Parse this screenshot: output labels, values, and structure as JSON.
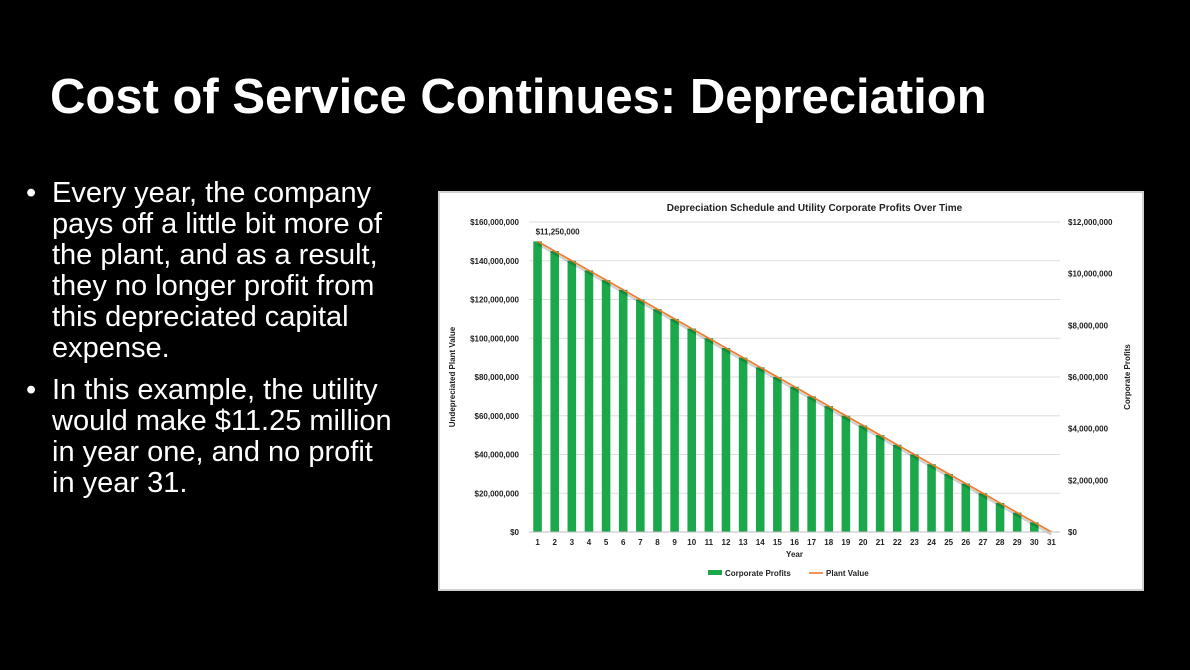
{
  "slide": {
    "title": "Cost of Service Continues: Depreciation",
    "bullets": [
      "Every year, the company pays off a little bit more of the plant, and as a result, they no longer profit from this depreciated capital expense.",
      "In this example, the utility would make $11.25 million in year one, and no profit in year 31."
    ],
    "bullet_symbol": "•"
  },
  "chart_data": {
    "type": "bar",
    "title": "Depreciation Schedule and Utility Corporate Profits Over Time",
    "xlabel": "Year",
    "ylabel": "Undepreciated Plant Value",
    "y2label": "Corporate Profits",
    "categories": [
      "1",
      "2",
      "3",
      "4",
      "5",
      "6",
      "7",
      "8",
      "9",
      "10",
      "11",
      "12",
      "13",
      "14",
      "15",
      "16",
      "17",
      "18",
      "19",
      "20",
      "21",
      "22",
      "23",
      "24",
      "25",
      "26",
      "27",
      "28",
      "29",
      "30",
      "31"
    ],
    "ylim": [
      0,
      160000000
    ],
    "y_ticks": [
      0,
      20000000,
      40000000,
      60000000,
      80000000,
      100000000,
      120000000,
      140000000,
      160000000
    ],
    "y_tick_labels": [
      "$0",
      "$20,000,000",
      "$40,000,000",
      "$60,000,000",
      "$80,000,000",
      "$100,000,000",
      "$120,000,000",
      "$140,000,000",
      "$160,000,000"
    ],
    "y2lim": [
      0,
      12000000
    ],
    "y2_ticks": [
      0,
      2000000,
      4000000,
      6000000,
      8000000,
      10000000,
      12000000
    ],
    "y2_tick_labels": [
      "$0",
      "$2,000,000",
      "$4,000,000",
      "$6,000,000",
      "$8,000,000",
      "$10,000,000",
      "$12,000,000"
    ],
    "series": [
      {
        "name": "Corporate Profits",
        "kind": "bar",
        "axis": "right",
        "color": "#1aa84b",
        "values": [
          11250000,
          10875000,
          10500000,
          10125000,
          9750000,
          9375000,
          9000000,
          8625000,
          8250000,
          7875000,
          7500000,
          7125000,
          6750000,
          6375000,
          6000000,
          5625000,
          5250000,
          4875000,
          4500000,
          4125000,
          3750000,
          3375000,
          3000000,
          2625000,
          2250000,
          1875000,
          1500000,
          1125000,
          750000,
          375000,
          0
        ]
      },
      {
        "name": "Plant Value",
        "kind": "line",
        "axis": "left",
        "color": "#f07a2a",
        "values": [
          150000000,
          145000000,
          140000000,
          135000000,
          130000000,
          125000000,
          120000000,
          115000000,
          110000000,
          105000000,
          100000000,
          95000000,
          90000000,
          85000000,
          80000000,
          75000000,
          70000000,
          65000000,
          60000000,
          55000000,
          50000000,
          45000000,
          40000000,
          35000000,
          30000000,
          25000000,
          20000000,
          15000000,
          10000000,
          5000000,
          0
        ]
      }
    ],
    "annotations": [
      {
        "text": "$11,250,000",
        "category": "1",
        "series": "Corporate Profits"
      }
    ],
    "grid": true,
    "legend": "bottom"
  }
}
